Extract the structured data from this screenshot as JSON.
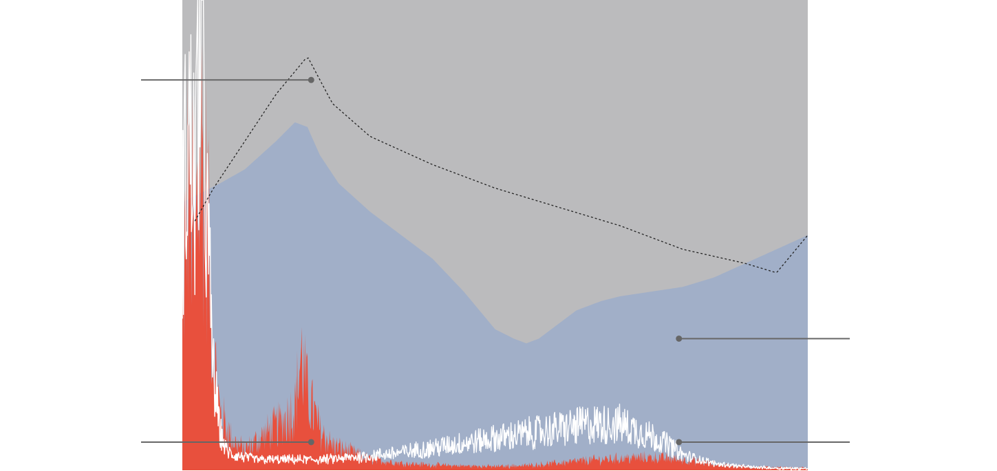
{
  "chart_data": {
    "type": "area",
    "title": "",
    "xlabel": "",
    "ylabel": "",
    "grid": false,
    "legend": "none",
    "x_range": [
      0,
      100
    ],
    "y_range": [
      0,
      100
    ],
    "series": [
      {
        "role": "envelope-dashed",
        "style": "dashed-line",
        "x": [
          2,
          5,
          10,
          15,
          20,
          22,
          24,
          30,
          40,
          50,
          60,
          70,
          80,
          90,
          95,
          100
        ],
        "values": [
          53,
          60,
          70,
          80,
          88,
          83,
          78,
          71,
          65,
          60,
          56,
          52,
          47,
          44,
          42,
          50
        ]
      },
      {
        "role": "background-range",
        "style": "grey-fill",
        "x": [
          0,
          100
        ],
        "values": [
          100,
          100
        ]
      },
      {
        "role": "blue-area",
        "style": "blue-fill",
        "x": [
          0,
          3,
          6,
          10,
          15,
          18,
          20,
          22,
          25,
          30,
          35,
          40,
          45,
          50,
          53,
          55,
          57,
          60,
          63,
          67,
          70,
          75,
          80,
          85,
          90,
          95,
          100
        ],
        "values": [
          57,
          59,
          61,
          64,
          70,
          74,
          73,
          67,
          61,
          55,
          50,
          45,
          38,
          30,
          28,
          27,
          28,
          31,
          34,
          36,
          37,
          38,
          39,
          41,
          44,
          47,
          50
        ]
      },
      {
        "role": "red-spectrum",
        "style": "red-fill",
        "x": [
          0,
          1,
          2,
          3,
          4,
          5,
          6,
          7,
          8,
          10,
          12,
          14,
          16,
          18,
          19,
          20,
          21,
          22,
          24,
          26,
          28,
          30,
          35,
          40,
          45,
          50,
          55,
          60,
          65,
          70,
          75,
          80,
          85,
          90,
          95,
          100
        ],
        "values": [
          33,
          65,
          45,
          69,
          55,
          25,
          12,
          9,
          6,
          4,
          6,
          8,
          10,
          13,
          24,
          16,
          12,
          8,
          5,
          4,
          3,
          2,
          1.2,
          0.8,
          0.6,
          0.5,
          0.7,
          1.2,
          1.8,
          2.2,
          2.4,
          2.0,
          1.0,
          0.4,
          0.2,
          0.1
        ]
      },
      {
        "role": "white-trace",
        "style": "white-line",
        "x": [
          0,
          1,
          2,
          3,
          4,
          5,
          6,
          7,
          8,
          10,
          12,
          14,
          16,
          18,
          20,
          22,
          25,
          30,
          35,
          40,
          45,
          50,
          55,
          60,
          65,
          70,
          75,
          78,
          80,
          85,
          90,
          95,
          100
        ],
        "values": [
          55,
          72,
          60,
          98,
          50,
          20,
          8,
          4,
          3,
          2.5,
          2,
          2,
          2,
          2,
          2,
          2,
          2.2,
          2.8,
          3.5,
          4.5,
          5.5,
          6.5,
          7.5,
          8.5,
          9.5,
          9.5,
          7,
          5,
          3,
          1.2,
          0.5,
          0.2,
          0.1
        ]
      }
    ],
    "annotations": [
      {
        "target": "envelope-peak",
        "x": 20.6,
        "y": 83,
        "label": "",
        "side": "left"
      },
      {
        "target": "blue-area",
        "x": 79.4,
        "y": 28,
        "label": "",
        "side": "right"
      },
      {
        "target": "red-spectrum",
        "x": 20.6,
        "y": 6,
        "label": "",
        "side": "left"
      },
      {
        "target": "white-trace",
        "x": 79.4,
        "y": 6,
        "label": "",
        "side": "right"
      }
    ],
    "colors": {
      "background_fill": "#bbbbbd",
      "blue_fill": "#a1afc8",
      "red_fill": "#e8503d",
      "white_line": "#ffffff",
      "dashed_line": "#222222",
      "annotation": "#666666"
    }
  }
}
